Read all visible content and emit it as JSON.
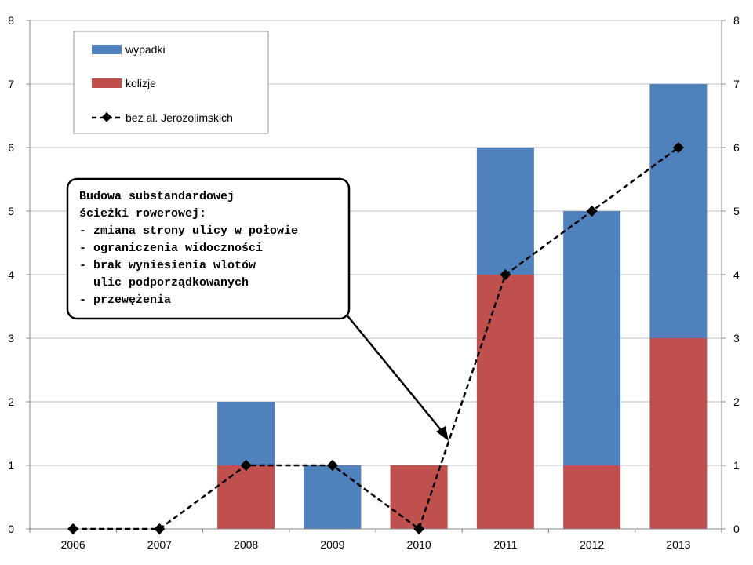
{
  "chart_data": {
    "type": "bar",
    "stacked": true,
    "categories": [
      "2006",
      "2007",
      "2008",
      "2009",
      "2010",
      "2011",
      "2012",
      "2013"
    ],
    "series": [
      {
        "name": "kolizje",
        "type": "bar",
        "color": "#C0504D",
        "values": [
          0,
          0,
          1,
          0,
          1,
          4,
          1,
          3
        ]
      },
      {
        "name": "wypadki",
        "type": "bar",
        "color": "#4F81BD",
        "values": [
          0,
          0,
          1,
          1,
          0,
          2,
          4,
          4
        ]
      },
      {
        "name": "bez al. Jerozolimskich",
        "type": "line",
        "style": "dashed",
        "marker": "diamond",
        "color": "#000000",
        "values": [
          0,
          0,
          1,
          1,
          0,
          4,
          5,
          6
        ]
      }
    ],
    "ylim": [
      0,
      8
    ],
    "yticks": [
      "0",
      "1",
      "2",
      "3",
      "4",
      "5",
      "6",
      "7",
      "8"
    ],
    "y2ticks": [
      "0",
      "1",
      "2",
      "3",
      "4",
      "5",
      "6",
      "7",
      "8"
    ],
    "grid": true,
    "legend_position": "top-left",
    "legend": [
      "wypadki",
      "kolizje",
      "bez al. Jerozolimskich"
    ],
    "annotation": {
      "lines": [
        "Budowa substandardowej",
        "ścieżki rowerowej:",
        "- zmiana strony ulicy w połowie",
        "- ograniczenia widoczności",
        "- brak wyniesienia wlotów",
        "  ulic podporządkowanych",
        "- przewężenia"
      ],
      "points_to_category": "2010",
      "points_to_value": 1.4
    }
  }
}
